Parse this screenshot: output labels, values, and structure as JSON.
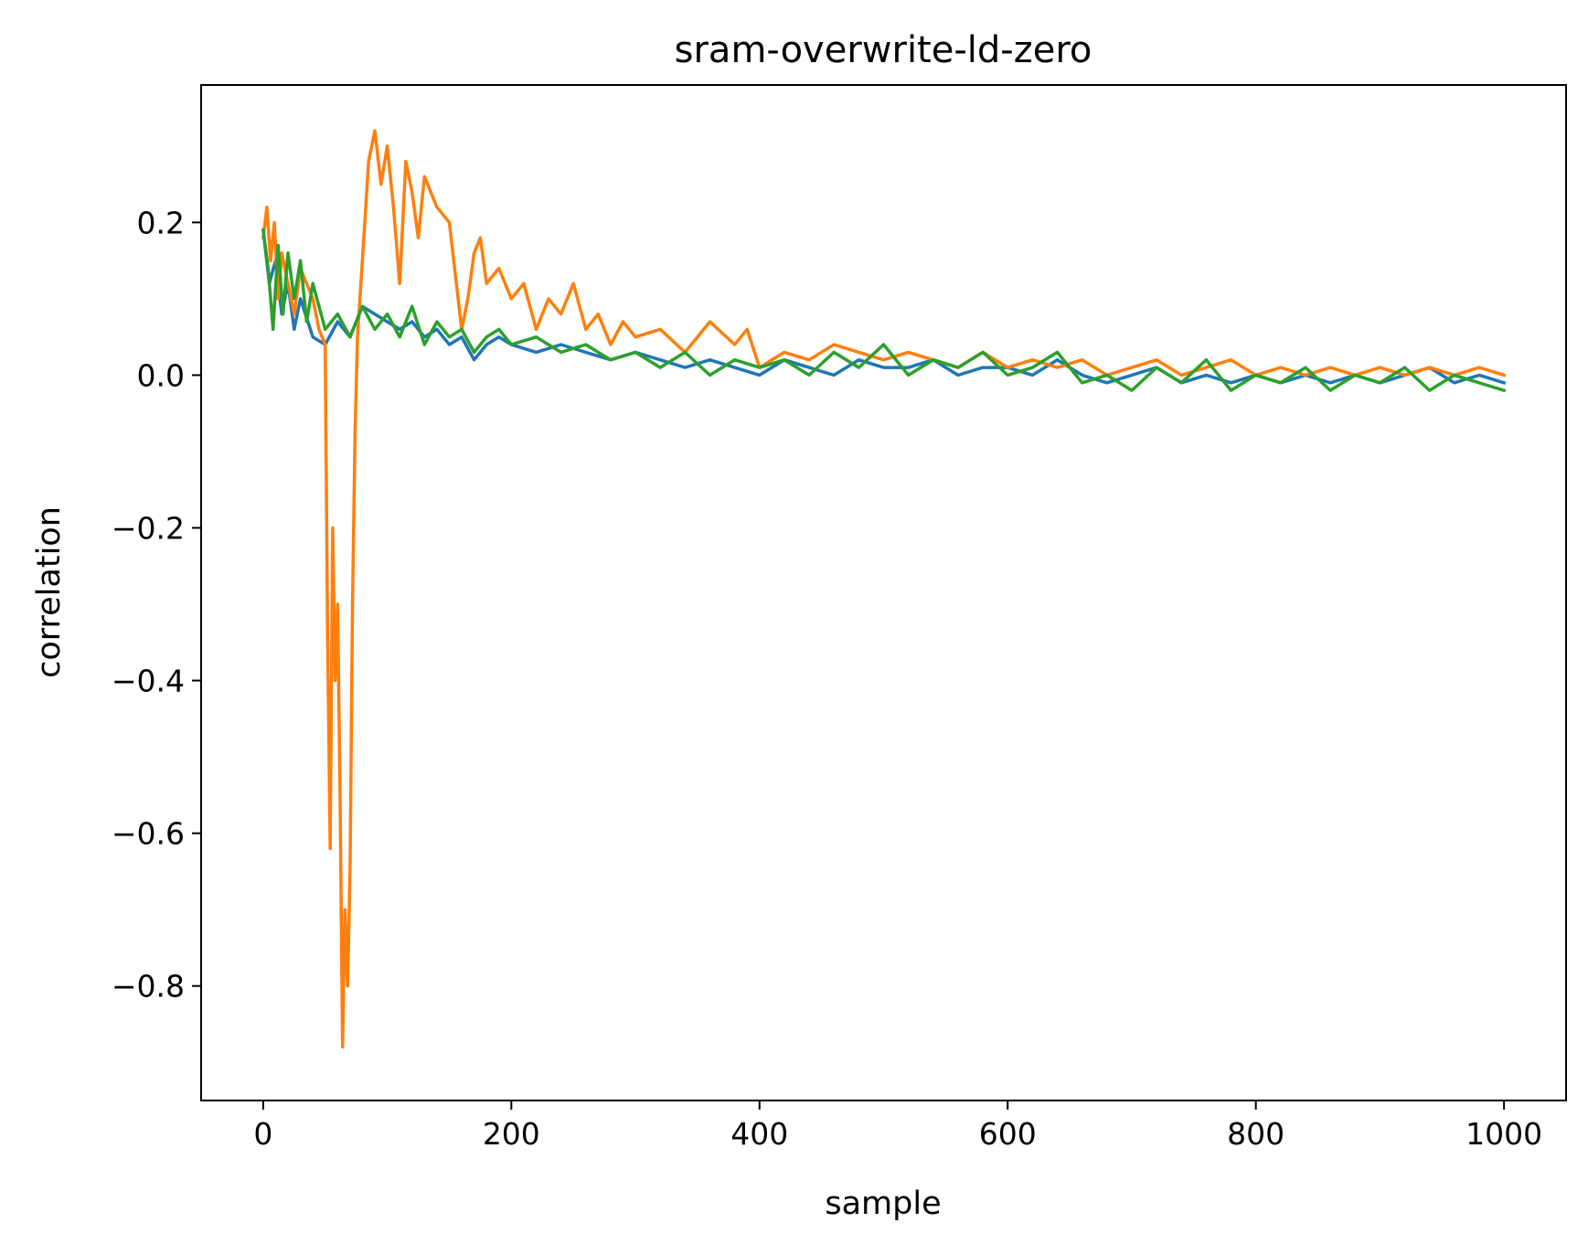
{
  "chart_data": {
    "type": "line",
    "title": "sram-overwrite-ld-zero",
    "xlabel": "sample",
    "ylabel": "correlation",
    "xlim": [
      -50,
      1050
    ],
    "ylim": [
      -0.95,
      0.38
    ],
    "xticks": [
      0,
      200,
      400,
      600,
      800,
      1000
    ],
    "xtick_labels": [
      "0",
      "200",
      "400",
      "600",
      "800",
      "1000"
    ],
    "yticks": [
      0.2,
      0.0,
      -0.2,
      -0.4,
      -0.6,
      -0.8
    ],
    "ytick_labels": [
      "0.2",
      "0.0",
      "−0.2",
      "−0.4",
      "−0.6",
      "−0.8"
    ],
    "grid": false,
    "legend": "none",
    "series": [
      {
        "color": "#1f77b4",
        "x": [
          0,
          5,
          10,
          15,
          20,
          25,
          30,
          40,
          50,
          60,
          70,
          80,
          90,
          100,
          110,
          120,
          130,
          140,
          150,
          160,
          170,
          180,
          190,
          200,
          220,
          240,
          260,
          280,
          300,
          320,
          340,
          360,
          380,
          400,
          420,
          440,
          460,
          480,
          500,
          520,
          540,
          560,
          580,
          600,
          620,
          640,
          660,
          680,
          700,
          720,
          740,
          760,
          780,
          800,
          820,
          840,
          860,
          880,
          900,
          920,
          940,
          960,
          980,
          1000
        ],
        "y": [
          0.19,
          0.12,
          0.15,
          0.08,
          0.12,
          0.06,
          0.1,
          0.05,
          0.04,
          0.07,
          0.05,
          0.09,
          0.08,
          0.07,
          0.06,
          0.07,
          0.05,
          0.06,
          0.04,
          0.05,
          0.02,
          0.04,
          0.05,
          0.04,
          0.03,
          0.04,
          0.03,
          0.02,
          0.03,
          0.02,
          0.01,
          0.02,
          0.01,
          0.0,
          0.02,
          0.01,
          0.0,
          0.02,
          0.01,
          0.01,
          0.02,
          0.0,
          0.01,
          0.01,
          0.0,
          0.02,
          0.0,
          -0.01,
          0.0,
          0.01,
          -0.01,
          0.0,
          -0.01,
          0.0,
          -0.01,
          0.0,
          -0.01,
          0.0,
          -0.01,
          0.0,
          0.01,
          -0.01,
          0.0,
          -0.01
        ]
      },
      {
        "color": "#ff7f0e",
        "x": [
          0,
          3,
          6,
          9,
          12,
          15,
          20,
          25,
          30,
          40,
          45,
          50,
          52,
          54,
          56,
          58,
          60,
          62,
          64,
          66,
          68,
          70,
          72,
          74,
          76,
          80,
          85,
          90,
          95,
          100,
          105,
          110,
          115,
          120,
          125,
          130,
          140,
          150,
          160,
          165,
          170,
          175,
          180,
          190,
          200,
          210,
          220,
          230,
          240,
          250,
          260,
          270,
          280,
          290,
          300,
          320,
          340,
          360,
          380,
          390,
          400,
          420,
          440,
          460,
          480,
          500,
          520,
          540,
          560,
          580,
          600,
          620,
          640,
          660,
          680,
          700,
          720,
          740,
          760,
          780,
          800,
          820,
          840,
          860,
          880,
          900,
          920,
          940,
          960,
          980,
          1000
        ],
        "y": [
          0.18,
          0.22,
          0.15,
          0.2,
          0.1,
          0.16,
          0.12,
          0.08,
          0.14,
          0.1,
          0.06,
          0.04,
          -0.35,
          -0.62,
          -0.2,
          -0.4,
          -0.3,
          -0.55,
          -0.88,
          -0.7,
          -0.8,
          -0.65,
          -0.3,
          -0.08,
          0.05,
          0.15,
          0.28,
          0.32,
          0.25,
          0.3,
          0.22,
          0.12,
          0.28,
          0.24,
          0.18,
          0.26,
          0.22,
          0.2,
          0.06,
          0.1,
          0.16,
          0.18,
          0.12,
          0.14,
          0.1,
          0.12,
          0.06,
          0.1,
          0.08,
          0.12,
          0.06,
          0.08,
          0.04,
          0.07,
          0.05,
          0.06,
          0.03,
          0.07,
          0.04,
          0.06,
          0.01,
          0.03,
          0.02,
          0.04,
          0.03,
          0.02,
          0.03,
          0.02,
          0.01,
          0.03,
          0.01,
          0.02,
          0.01,
          0.02,
          0.0,
          0.01,
          0.02,
          0.0,
          0.01,
          0.02,
          0.0,
          0.01,
          0.0,
          0.01,
          0.0,
          0.01,
          0.0,
          0.01,
          0.0,
          0.01,
          0.0
        ]
      },
      {
        "color": "#2ca02c",
        "x": [
          0,
          4,
          8,
          12,
          16,
          20,
          25,
          30,
          35,
          40,
          50,
          60,
          70,
          80,
          90,
          100,
          110,
          120,
          130,
          140,
          150,
          160,
          170,
          180,
          190,
          200,
          220,
          240,
          260,
          280,
          300,
          320,
          340,
          360,
          380,
          400,
          420,
          440,
          460,
          480,
          500,
          520,
          540,
          560,
          580,
          600,
          620,
          640,
          660,
          680,
          700,
          720,
          740,
          760,
          780,
          800,
          820,
          840,
          860,
          880,
          900,
          920,
          940,
          960,
          980,
          1000
        ],
        "y": [
          0.19,
          0.14,
          0.06,
          0.17,
          0.08,
          0.16,
          0.1,
          0.15,
          0.07,
          0.12,
          0.06,
          0.08,
          0.05,
          0.09,
          0.06,
          0.08,
          0.05,
          0.09,
          0.04,
          0.07,
          0.05,
          0.06,
          0.03,
          0.05,
          0.06,
          0.04,
          0.05,
          0.03,
          0.04,
          0.02,
          0.03,
          0.01,
          0.03,
          0.0,
          0.02,
          0.01,
          0.02,
          0.0,
          0.03,
          0.01,
          0.04,
          0.0,
          0.02,
          0.01,
          0.03,
          0.0,
          0.01,
          0.03,
          -0.01,
          0.0,
          -0.02,
          0.01,
          -0.01,
          0.02,
          -0.02,
          0.0,
          -0.01,
          0.01,
          -0.02,
          0.0,
          -0.01,
          0.01,
          -0.02,
          0.0,
          -0.01,
          -0.02
        ]
      }
    ]
  }
}
